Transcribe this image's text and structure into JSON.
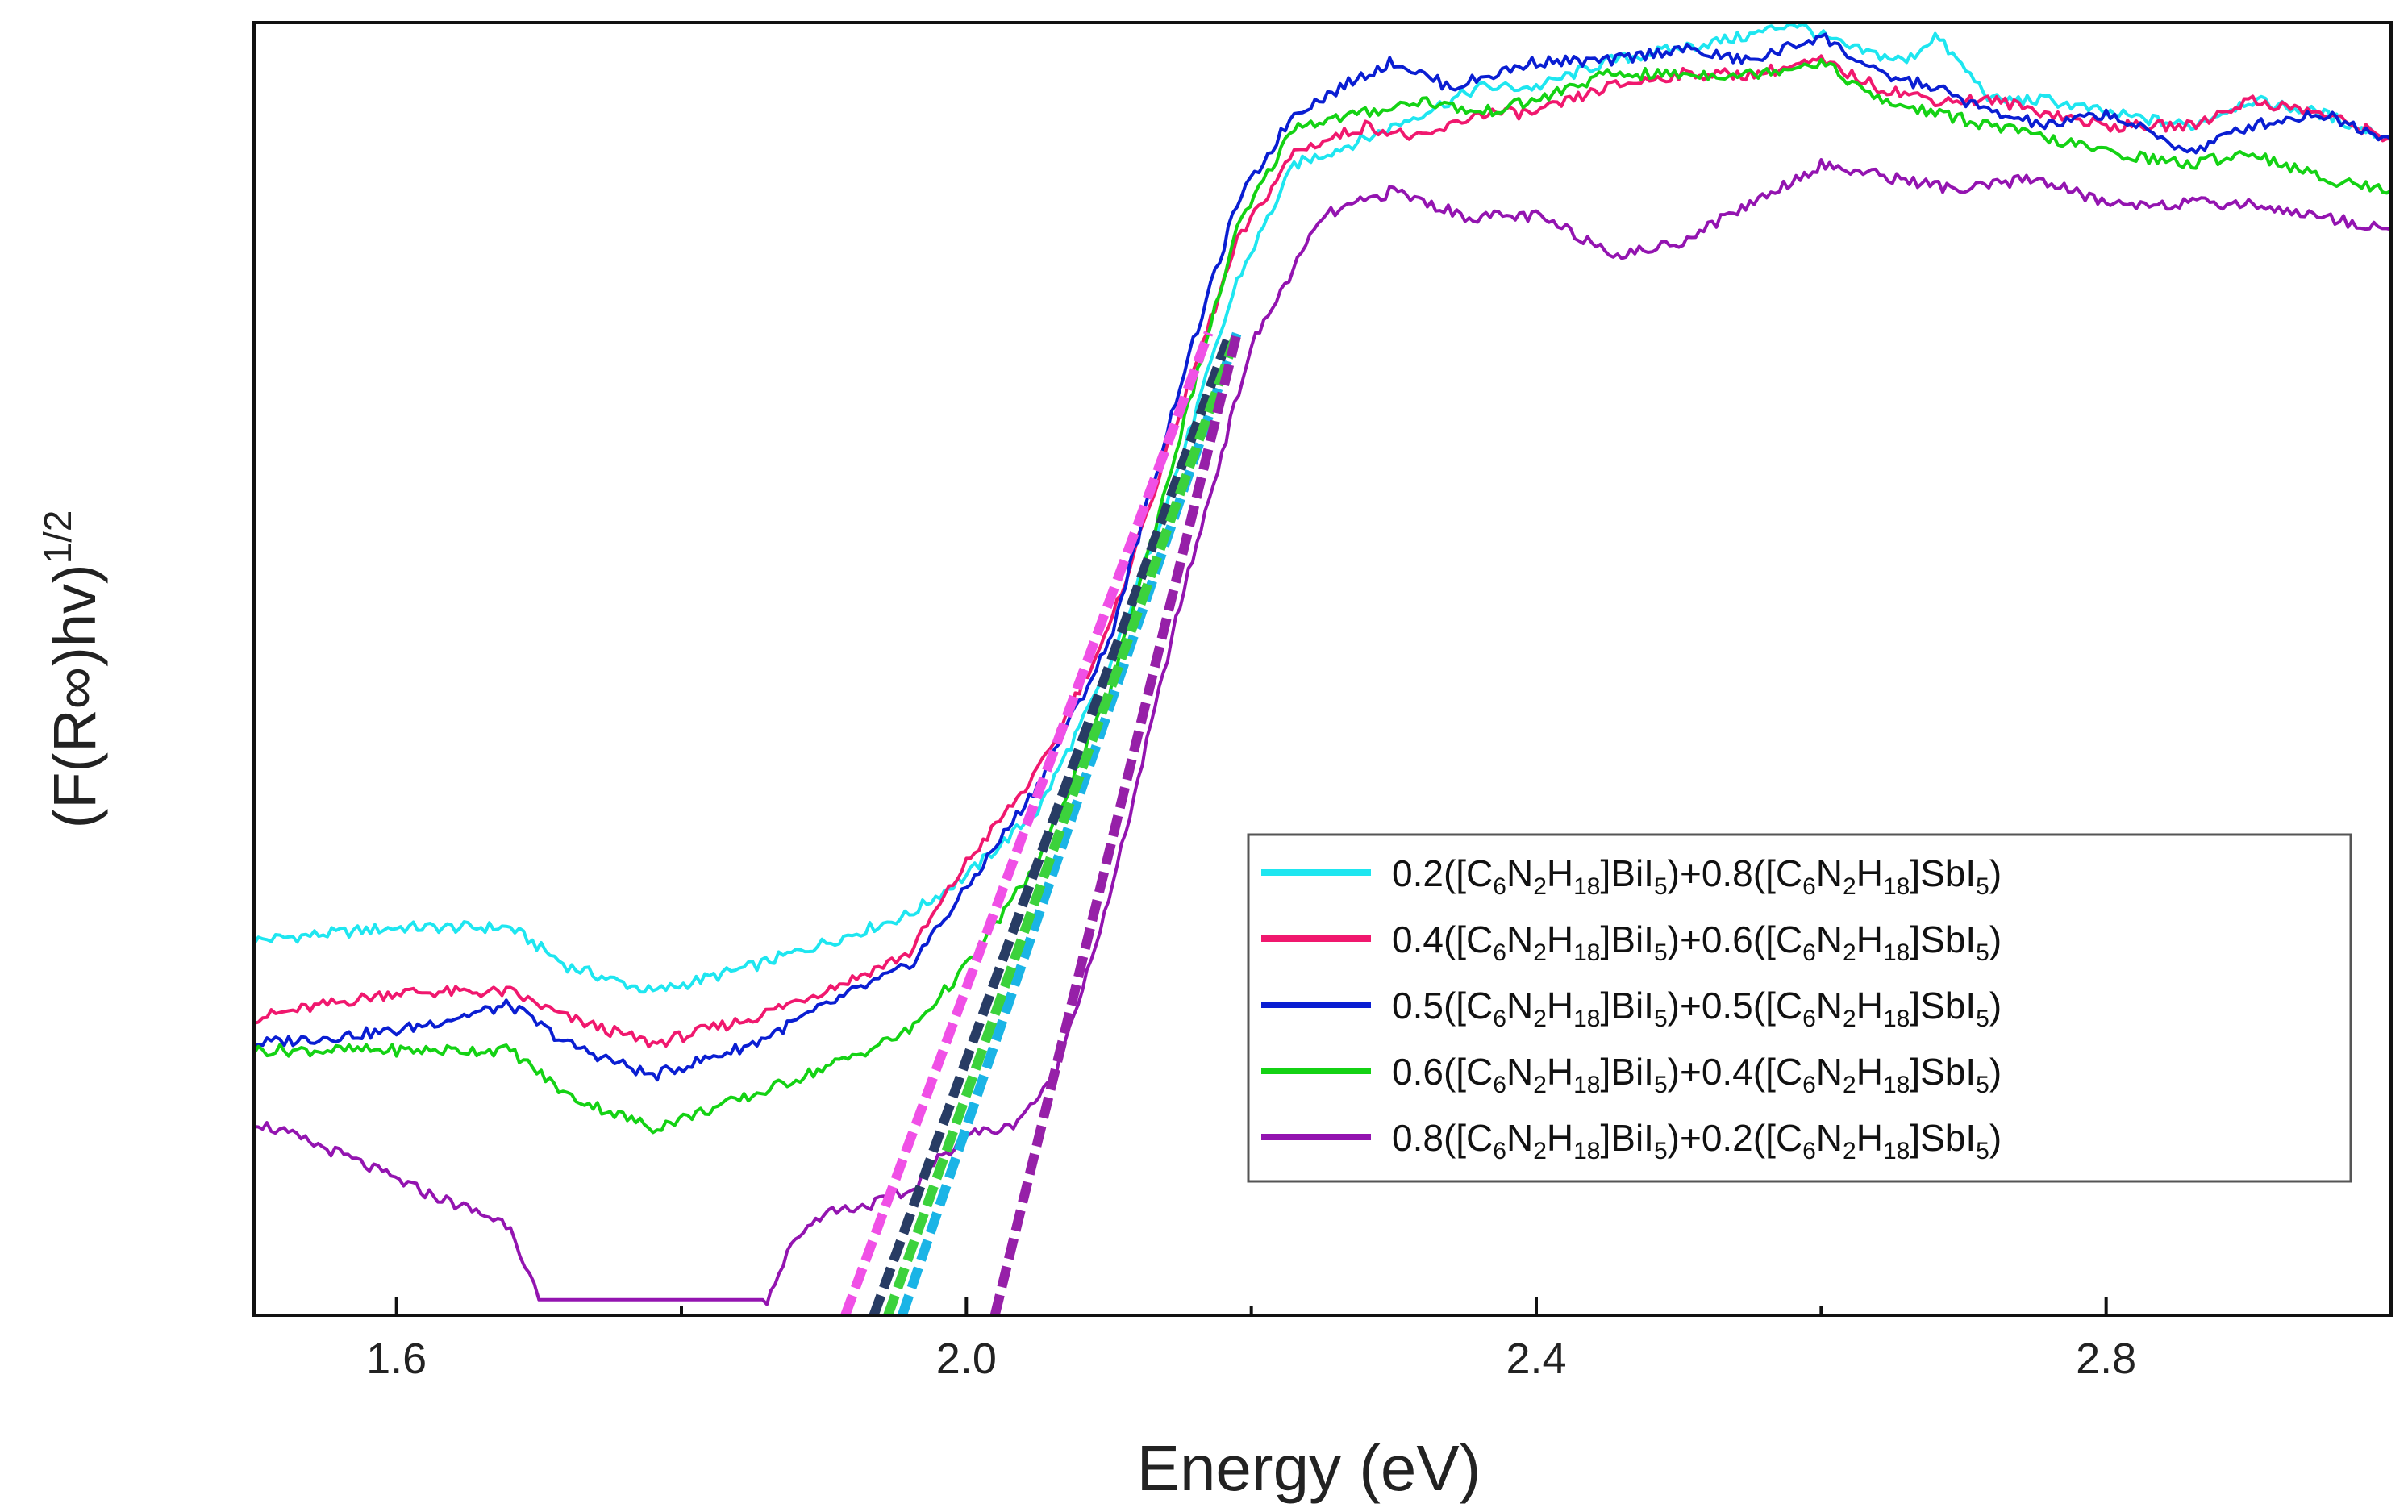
{
  "chart_data": {
    "type": "line",
    "title": "",
    "xlabel": "Energy (eV)",
    "ylabel": "(F(R∞)hv)1/2",
    "ylabel_parts": {
      "main": "(F(R∞)hv)",
      "sup": "1/2"
    },
    "xlim": [
      1.5,
      3.0
    ],
    "ylim": [
      0,
      100
    ],
    "x_ticks": [
      1.6,
      2.0,
      2.4,
      2.8
    ],
    "x_tick_labels": [
      "1.6",
      "2.0",
      "2.4",
      "2.8"
    ],
    "y_tick_labels_shown": false,
    "legend_position": "lower-right",
    "series": [
      {
        "name": "0.2([C6N2H18]BiI5)+0.8([C6N2H18]SbI5)",
        "label_parts": [
          "0.2([C",
          "6",
          "N",
          "2",
          "H",
          "18",
          "]BiI",
          "5",
          ")+0.8([C",
          "6",
          "N",
          "2",
          "H",
          "18",
          "]SbI",
          "5",
          ")"
        ],
        "color": "#1ee6f0",
        "x": [
          1.5,
          1.6,
          1.68,
          1.72,
          1.78,
          1.85,
          1.92,
          1.96,
          2.0,
          2.05,
          2.1,
          2.15,
          2.19,
          2.23,
          2.28,
          2.32,
          2.36,
          2.4,
          2.45,
          2.5,
          2.55,
          2.58,
          2.62,
          2.66,
          2.68,
          2.72,
          2.76,
          2.8,
          2.86,
          2.9,
          2.95,
          3.0
        ],
        "y": [
          29,
          30,
          30,
          27,
          25,
          27,
          29.5,
          31,
          34,
          39,
          50,
          66,
          80,
          89,
          91,
          93,
          95,
          95,
          97,
          98,
          99,
          100,
          98,
          97,
          99,
          94,
          94,
          93,
          92,
          94,
          93,
          91
        ]
      },
      {
        "name": "0.4([C6N2H18]BiI5)+0.6([C6N2H18]SbI5)",
        "label_parts": [
          "0.4([C",
          "6",
          "N",
          "2",
          "H",
          "18",
          "]BiI",
          "5",
          ")+0.6([C",
          "6",
          "N",
          "2",
          "H",
          "18",
          "]SbI",
          "5",
          ")"
        ],
        "color": "#f0186e",
        "x": [
          1.5,
          1.6,
          1.68,
          1.72,
          1.78,
          1.85,
          1.92,
          1.96,
          2.0,
          2.05,
          2.1,
          2.15,
          2.19,
          2.23,
          2.28,
          2.32,
          2.36,
          2.4,
          2.45,
          2.5,
          2.55,
          2.6,
          2.64,
          2.68,
          2.72,
          2.76,
          2.8,
          2.86,
          2.9,
          2.95,
          3.0
        ],
        "y": [
          23,
          25,
          25,
          23,
          21,
          23,
          26,
          28,
          35,
          42,
          53,
          70,
          83,
          90,
          92,
          91,
          93,
          93,
          95,
          96,
          96,
          97,
          95,
          94,
          94,
          93,
          92,
          92,
          94,
          93,
          91
        ]
      },
      {
        "name": "0.5([C6N2H18]BiI5)+0.5([C6N2H18]SbI5)",
        "label_parts": [
          "0.5([C",
          "6",
          "N",
          "2",
          "H",
          "18",
          "]BiI",
          "5",
          ")+0.5([C",
          "6",
          "N",
          "2",
          "H",
          "18",
          "]SbI",
          "5",
          ")"
        ],
        "color": "#0a1ed2",
        "x": [
          1.5,
          1.6,
          1.68,
          1.72,
          1.78,
          1.85,
          1.92,
          1.96,
          2.0,
          2.05,
          2.1,
          2.15,
          2.19,
          2.23,
          2.28,
          2.3,
          2.34,
          2.4,
          2.45,
          2.5,
          2.55,
          2.6,
          2.64,
          2.68,
          2.72,
          2.76,
          2.8,
          2.86,
          2.9,
          2.95,
          3.0
        ],
        "y": [
          21,
          22,
          24,
          21,
          18.5,
          21,
          25,
          27,
          33,
          41,
          52,
          72,
          86,
          93,
          96,
          97,
          95,
          97,
          97,
          98,
          97,
          99,
          96,
          95,
          93,
          92,
          93,
          90,
          92,
          93,
          91
        ]
      },
      {
        "name": "0.6([C6N2H18]BiI5)+0.4([C6N2H18]SbI5)",
        "label_parts": [
          "0.6([C",
          "6",
          "N",
          "2",
          "H",
          "18",
          "]BiI",
          "5",
          ")+0.4([C",
          "6",
          "N",
          "2",
          "H",
          "18",
          "]SbI",
          "5",
          ")"
        ],
        "color": "#14d214",
        "x": [
          1.5,
          1.6,
          1.68,
          1.72,
          1.78,
          1.85,
          1.92,
          1.96,
          2.0,
          2.05,
          2.1,
          2.15,
          2.19,
          2.23,
          2.28,
          2.32,
          2.36,
          2.4,
          2.45,
          2.5,
          2.55,
          2.6,
          2.64,
          2.68,
          2.72,
          2.76,
          2.8,
          2.86,
          2.9,
          2.95,
          3.0
        ],
        "y": [
          20.5,
          20.5,
          20.5,
          17,
          14.5,
          17,
          20,
          22,
          27,
          35,
          48,
          68,
          84,
          92,
          93,
          94,
          93,
          94,
          96,
          96,
          96,
          97,
          94,
          93,
          92,
          91,
          90,
          89,
          90,
          88,
          87
        ]
      },
      {
        "name": "0.8([C6N2H18]BiI5)+0.2([C6N2H18]SbI5)",
        "label_parts": [
          "0.8([C",
          "6",
          "N",
          "2",
          "H",
          "18",
          "]BiI",
          "5",
          ")+0.2([C",
          "6",
          "N",
          "2",
          "H",
          "18",
          "]SbI",
          "5",
          ")"
        ],
        "color": "#9314b0",
        "x": [
          1.5,
          1.56,
          1.62,
          1.68,
          1.69,
          1.7,
          1.78,
          1.86,
          1.88,
          1.9,
          1.93,
          1.96,
          1.98,
          2.0,
          2.03,
          2.06,
          2.1,
          2.15,
          2.2,
          2.25,
          2.3,
          2.35,
          2.4,
          2.46,
          2.5,
          2.55,
          2.6,
          2.65,
          2.7,
          2.75,
          2.8,
          2.9,
          3.0
        ],
        "y": [
          15,
          12.5,
          9.5,
          7,
          4,
          1.2,
          1.2,
          1.2,
          6,
          8,
          8.5,
          9.5,
          12,
          14,
          14.5,
          18,
          32,
          55,
          75,
          85,
          87,
          85,
          85,
          82,
          83,
          86,
          89,
          88,
          87,
          88,
          86,
          86,
          84
        ]
      }
    ],
    "fit_lines": [
      {
        "name": "tangent fit 0.2",
        "color": "#1ab4e6",
        "x": [
          1.955,
          2.19
        ]
      },
      {
        "name": "tangent fit 0.4",
        "color": "#f050e6",
        "x": [
          1.915,
          2.17
        ]
      },
      {
        "name": "tangent fit 0.5",
        "color": "#283c64",
        "x": [
          1.935,
          2.185
        ]
      },
      {
        "name": "tangent fit 0.6",
        "color": "#3cd23c",
        "x": [
          1.945,
          2.19
        ]
      },
      {
        "name": "tangent fit 0.8",
        "color": "#9620a8",
        "x": [
          2.02,
          2.19
        ]
      }
    ],
    "fit_y_range": [
      0,
      76
    ]
  }
}
